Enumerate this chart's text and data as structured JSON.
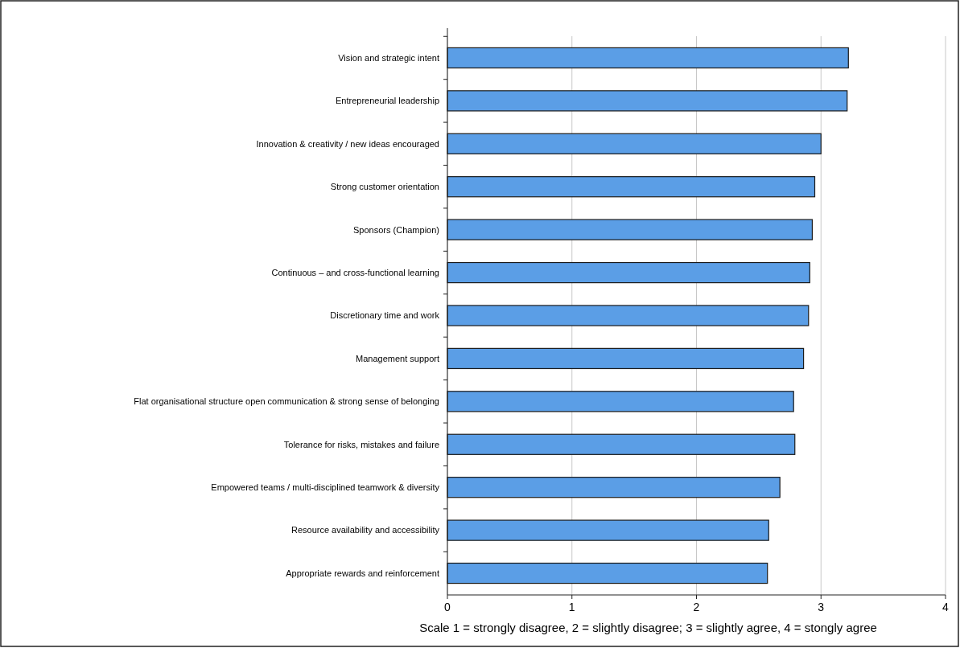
{
  "chart_data": {
    "type": "bar",
    "orientation": "horizontal",
    "categories": [
      "Vision and strategic intent",
      "Entrepreneurial leadership",
      "Innovation & creativity / new ideas encouraged",
      "Strong customer orientation",
      "Sponsors (Champion)",
      "Continuous – and cross-functional learning",
      "Discretionary time and work",
      "Management support",
      "Flat organisational structure  open communication & strong sense of belonging",
      "Tolerance for risks, mistakes and failure",
      "Empowered teams / multi-disciplined teamwork & diversity",
      "Resource availability and accessibility",
      "Appropriate rewards and reinforcement"
    ],
    "values": [
      3.22,
      3.21,
      3.0,
      2.95,
      2.93,
      2.91,
      2.9,
      2.86,
      2.78,
      2.79,
      2.67,
      2.58,
      2.57
    ],
    "color": "#5b9ee6",
    "xlim": [
      0,
      4
    ],
    "xticks": [
      0,
      1,
      2,
      3,
      4
    ],
    "grid": "x",
    "annotations": [
      "Scale  1 = strongly disagree, 2 = slightly disagree; 3 = slightly agree, 4 = stongly agree"
    ]
  }
}
